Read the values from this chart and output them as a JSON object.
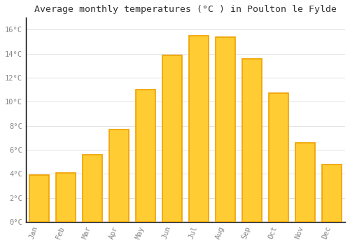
{
  "months": [
    "Jan",
    "Feb",
    "Mar",
    "Apr",
    "May",
    "Jun",
    "Jul",
    "Aug",
    "Sep",
    "Oct",
    "Nov",
    "Dec"
  ],
  "values": [
    3.9,
    4.1,
    5.6,
    7.7,
    11.0,
    13.9,
    15.5,
    15.4,
    13.6,
    10.7,
    6.6,
    4.8
  ],
  "bar_color": "#FFCC33",
  "bar_edge_color": "#F0A000",
  "background_color": "#FFFFFF",
  "grid_color": "#DDDDDD",
  "title": "Average monthly temperatures (°C ) in Poulton le Fylde",
  "title_fontsize": 9.5,
  "ylabel_ticks": [
    0,
    2,
    4,
    6,
    8,
    10,
    12,
    14,
    16
  ],
  "ytick_labels": [
    "0°C",
    "2°C",
    "4°C",
    "6°C",
    "8°C",
    "10°C",
    "12°C",
    "14°C",
    "16°C"
  ],
  "ylim": [
    0,
    17
  ],
  "tick_color": "#888888",
  "tick_fontsize": 7.5,
  "title_font_family": "monospace",
  "bar_width": 0.75
}
